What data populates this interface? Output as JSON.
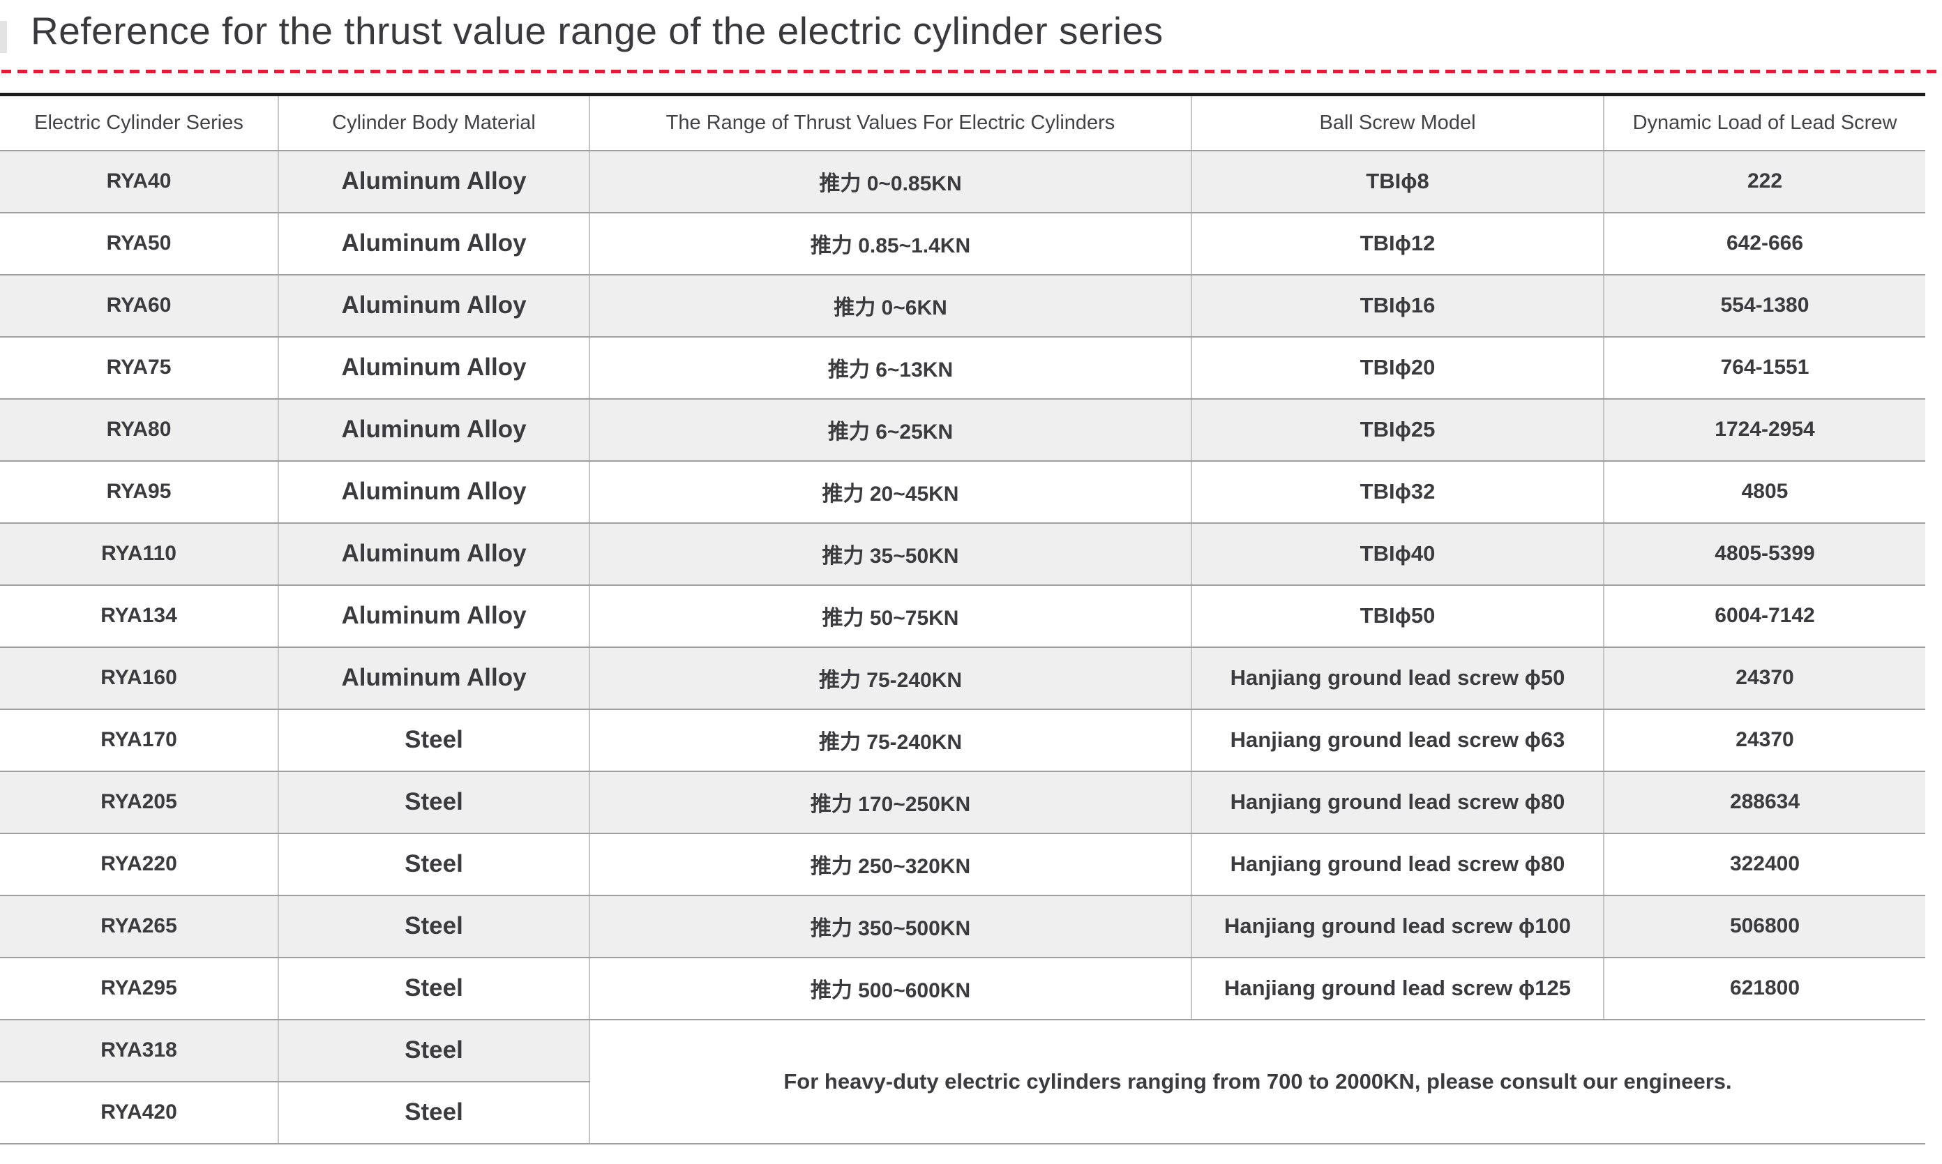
{
  "page": {
    "title": "Reference for the thrust value range of the electric cylinder series",
    "accent_color": "#e51937"
  },
  "table": {
    "columns": [
      "Electric Cylinder Series",
      "Cylinder Body Material",
      "The Range of Thrust Values For Electric Cylinders",
      "Ball Screw Model",
      "Dynamic Load of Lead Screw"
    ],
    "rows": [
      {
        "series": "RYA40",
        "material": "Aluminum Alloy",
        "thrust": "推力 0~0.85KN",
        "screw": "TBIϕ8",
        "load": "222"
      },
      {
        "series": "RYA50",
        "material": "Aluminum Alloy",
        "thrust": "推力 0.85~1.4KN",
        "screw": "TBIϕ12",
        "load": "642-666"
      },
      {
        "series": "RYA60",
        "material": "Aluminum Alloy",
        "thrust": "推力 0~6KN",
        "screw": "TBIϕ16",
        "load": "554-1380"
      },
      {
        "series": "RYA75",
        "material": "Aluminum Alloy",
        "thrust": "推力 6~13KN",
        "screw": "TBIϕ20",
        "load": "764-1551"
      },
      {
        "series": "RYA80",
        "material": "Aluminum Alloy",
        "thrust": "推力 6~25KN",
        "screw": "TBIϕ25",
        "load": "1724-2954"
      },
      {
        "series": "RYA95",
        "material": "Aluminum Alloy",
        "thrust": "推力 20~45KN",
        "screw": "TBIϕ32",
        "load": "4805"
      },
      {
        "series": "RYA110",
        "material": "Aluminum Alloy",
        "thrust": "推力 35~50KN",
        "screw": "TBIϕ40",
        "load": "4805-5399"
      },
      {
        "series": "RYA134",
        "material": "Aluminum Alloy",
        "thrust": "推力 50~75KN",
        "screw": "TBIϕ50",
        "load": "6004-7142"
      },
      {
        "series": "RYA160",
        "material": "Aluminum Alloy",
        "thrust": "推力 75-240KN",
        "screw": "Hanjiang ground lead screw ϕ50",
        "load": "24370"
      },
      {
        "series": "RYA170",
        "material": "Steel",
        "thrust": "推力 75-240KN",
        "screw": "Hanjiang ground lead screw ϕ63",
        "load": "24370"
      },
      {
        "series": "RYA205",
        "material": "Steel",
        "thrust": "推力 170~250KN",
        "screw": "Hanjiang ground lead screw ϕ80",
        "load": "288634"
      },
      {
        "series": "RYA220",
        "material": "Steel",
        "thrust": "推力 250~320KN",
        "screw": "Hanjiang ground lead screw ϕ80",
        "load": "322400"
      },
      {
        "series": "RYA265",
        "material": "Steel",
        "thrust": "推力 350~500KN",
        "screw": "Hanjiang ground lead screw ϕ100",
        "load": "506800"
      },
      {
        "series": "RYA295",
        "material": "Steel",
        "thrust": "推力 500~600KN",
        "screw": "Hanjiang ground lead screw ϕ125",
        "load": "621800"
      },
      {
        "series": "RYA318",
        "material": "Steel"
      },
      {
        "series": "RYA420",
        "material": "Steel"
      }
    ],
    "merged_note": "For heavy-duty electric cylinders ranging from 700 to 2000KN, please consult our engineers."
  }
}
